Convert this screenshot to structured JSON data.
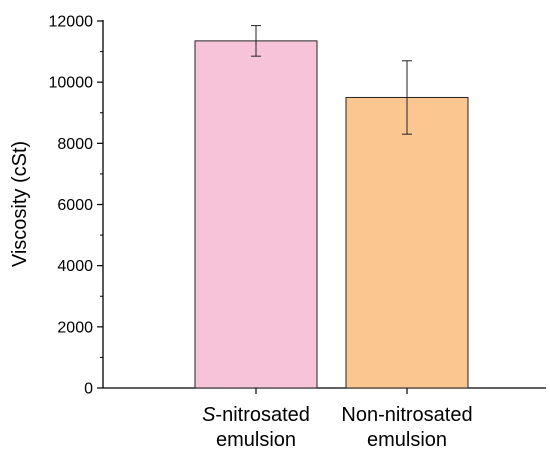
{
  "chart_data": {
    "type": "bar",
    "title": "",
    "xlabel": "",
    "ylabel": "Viscosity (cSt)",
    "ylim": [
      0,
      12000
    ],
    "yticks": [
      0,
      2000,
      4000,
      6000,
      8000,
      10000,
      12000
    ],
    "grid": false,
    "categories": [
      {
        "prefix": "S",
        "line1": "-nitrosated",
        "line2": "emulsion"
      },
      {
        "prefix": "",
        "line1": "Non-nitrosated",
        "line2": "emulsion"
      }
    ],
    "values": [
      11350,
      9500
    ],
    "errors": [
      [
        10850,
        11850
      ],
      [
        8300,
        10700
      ]
    ],
    "colors": [
      "#f7c3d8",
      "#fbc68f"
    ]
  }
}
